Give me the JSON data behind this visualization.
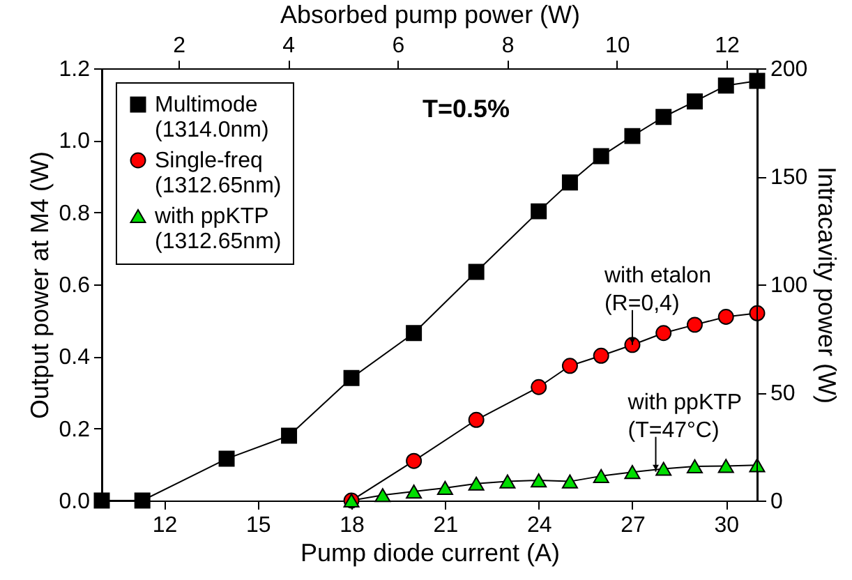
{
  "chart_data": {
    "type": "line",
    "xlabel": "Pump diode current (A)",
    "ylabel": "Output power at M4 (W)",
    "y2label": "Intracavity power (W)",
    "x2label": "Absorbed pump power (W)",
    "xlim": [
      10,
      31
    ],
    "xticks": [
      12,
      15,
      18,
      21,
      24,
      27,
      30
    ],
    "ylim": [
      0,
      1.2
    ],
    "yticks": [
      {
        "value": 0,
        "label": "0.0"
      },
      {
        "value": 0.2,
        "label": "0.2"
      },
      {
        "value": 0.4,
        "label": "0.4"
      },
      {
        "value": 0.6,
        "label": "0.6"
      },
      {
        "value": 0.8,
        "label": "0.8"
      },
      {
        "value": 1,
        "label": "1.0"
      },
      {
        "value": 1.2,
        "label": "1.2"
      }
    ],
    "y2lim": [
      0,
      200
    ],
    "y2ticks": [
      0,
      50,
      100,
      150,
      200
    ],
    "x2lim": [
      0.6,
      12.56
    ],
    "x2ticks": [
      2,
      4,
      6,
      8,
      10,
      12
    ],
    "grid": false,
    "legend": "top left",
    "line_style": "solid",
    "annotations": [
      "T=0.5%",
      {
        "text": "with etalon\n(R=0,4)",
        "x": 27,
        "y": 0.432
      },
      {
        "text": "with ppKTP\n(T=47°C)",
        "x": 27.75,
        "y": 0.08
      }
    ],
    "series": [
      {
        "name": "Multimode\n(1314.0nm)",
        "color": "#000000",
        "marker": "square",
        "x": [
          10,
          11.3,
          14,
          16,
          18,
          20,
          22,
          24,
          25,
          26,
          27,
          28,
          29,
          30,
          31
        ],
        "values": [
          0,
          0,
          0.116,
          0.18,
          0.34,
          0.465,
          0.635,
          0.803,
          0.883,
          0.956,
          1.012,
          1.065,
          1.108,
          1.152,
          1.165
        ]
      },
      {
        "name": "Single-freq\n(1312.65nm)",
        "color": "#ff0000",
        "marker": "circle",
        "x": [
          18,
          20,
          22,
          24,
          25,
          26,
          27,
          28,
          29,
          30,
          31
        ],
        "values": [
          0,
          0.11,
          0.224,
          0.315,
          0.374,
          0.402,
          0.432,
          0.465,
          0.488,
          0.51,
          0.52
        ]
      },
      {
        "name": "with ppKTP\n(1312.65nm)",
        "color": "#00dd00",
        "marker": "triangle",
        "x": [
          18,
          19,
          20,
          21,
          22,
          23,
          24,
          25,
          26,
          27,
          28,
          29,
          30,
          31
        ],
        "values": [
          0,
          0.015,
          0.025,
          0.035,
          0.047,
          0.053,
          0.056,
          0.053,
          0.068,
          0.079,
          0.088,
          0.095,
          0.096,
          0.098
        ]
      }
    ]
  }
}
